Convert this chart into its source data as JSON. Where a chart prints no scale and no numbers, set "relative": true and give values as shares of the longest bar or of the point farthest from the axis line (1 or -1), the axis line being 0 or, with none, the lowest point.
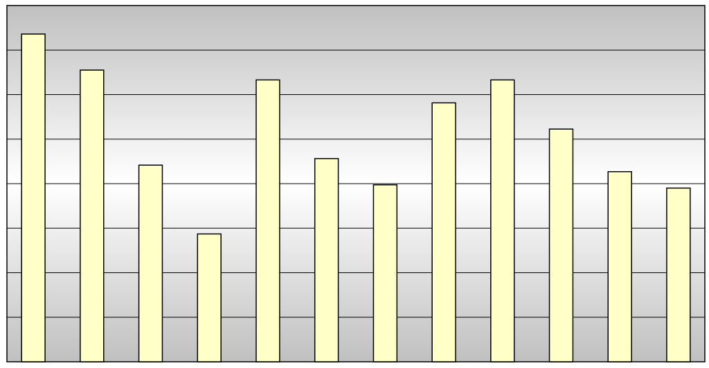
{
  "chart_data": {
    "type": "bar",
    "relative": true,
    "grid": true,
    "color": "#ffffc8",
    "categories": [
      null,
      null,
      null,
      null,
      null,
      null,
      null,
      null,
      null,
      null,
      null,
      null
    ],
    "values": [
      1,
      0.89,
      0.6,
      0.39,
      0.86,
      0.62,
      0.54,
      0.79,
      0.86,
      0.71,
      0.58,
      0.53
    ]
  }
}
